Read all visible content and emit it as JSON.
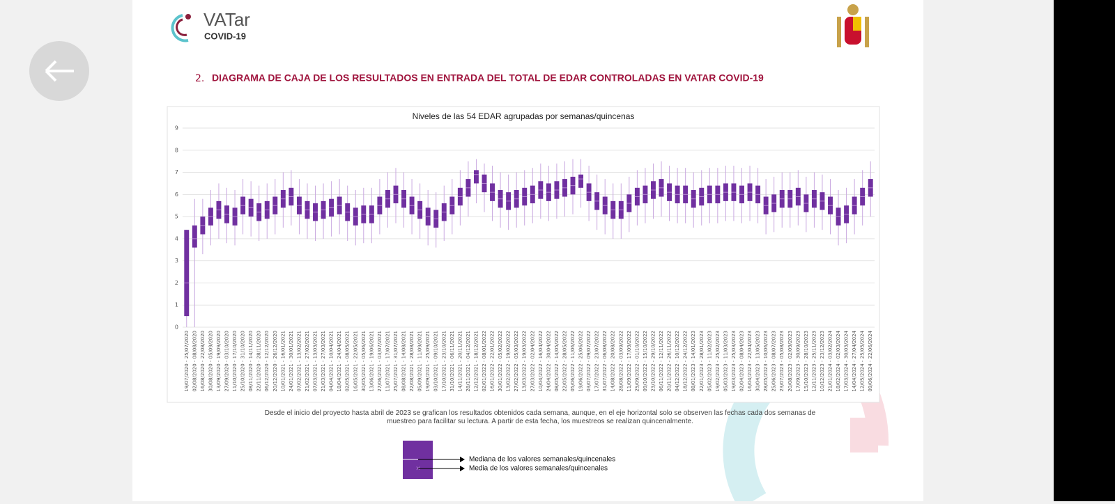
{
  "header": {
    "logo_text": "VATar",
    "logo_sub": "COVID-19"
  },
  "section": {
    "number": "2.",
    "title": "DIAGRAMA DE CAJA DE LOS RESULTADOS EN ENTRADA DEL TOTAL DE EDAR CONTROLADAS EN VATAR COVID-19"
  },
  "chart_data": {
    "type": "box",
    "title": "Niveles de las 54 EDAR agrupadas por semanas/quincenas",
    "color": "#7030a0",
    "grid": true,
    "ylim": [
      0,
      9
    ],
    "yticks": [
      0,
      1,
      2,
      3,
      4,
      5,
      6,
      7,
      8,
      9
    ],
    "categories": [
      "19/07/2020 - 25/07/2020",
      "02/08/2020 - 08/08/2020",
      "16/08/2020 - 22/08/2020",
      "30/08/2020 - 05/09/2020",
      "13/09/2020 - 19/09/2020",
      "27/09/2020 - 03/10/2020",
      "11/10/2020 - 17/10/2020",
      "25/10/2020 - 31/10/2020",
      "08/11/2020 - 14/11/2020",
      "22/11/2020 - 28/11/2020",
      "06/12/2020 - 12/12/2020",
      "20/12/2020 - 26/12/2020",
      "10/01/2021 - 16/01/2021",
      "24/01/2021 - 30/01/2021",
      "07/02/2021 - 13/02/2021",
      "21/02/2021 - 27/02/2021",
      "07/03/2021 - 13/03/2021",
      "21/03/2021 - 27/03/2021",
      "04/04/2021 - 10/04/2021",
      "18/04/2021 - 24/04/2021",
      "02/05/2021 - 08/05/2021",
      "16/05/2021 - 22/05/2021",
      "30/05/2021 - 05/06/2021",
      "13/06/2021 - 19/06/2021",
      "27/06/2021 - 03/07/2021",
      "11/07/2021 - 17/07/2021",
      "25/07/2021 - 31/07/2021",
      "08/08/2021 - 14/08/2021",
      "22/08/2021 - 28/08/2021",
      "05/09/2021 - 11/09/2021",
      "19/09/2021 - 25/09/2021",
      "03/10/2021 - 09/10/2021",
      "17/10/2021 - 23/10/2021",
      "31/10/2021 - 06/11/2021",
      "14/11/2021 - 20/11/2021",
      "28/11/2021 - 04/12/2021",
      "12/12/2021 - 18/12/2021",
      "02/01/2022 - 08/01/2022",
      "16/01/2022 - 22/01/2022",
      "30/01/2022 - 05/02/2022",
      "13/02/2022 - 19/02/2022",
      "27/02/2022 - 05/03/2022",
      "13/03/2022 - 19/03/2022",
      "27/03/2022 - 02/04/2022",
      "10/04/2022 - 16/04/2022",
      "24/04/2022 - 30/04/2022",
      "08/05/2022 - 14/05/2022",
      "22/05/2022 - 28/05/2022",
      "05/06/2022 - 11/06/2022",
      "19/06/2022 - 25/06/2022",
      "03/07/2022 - 09/07/2022",
      "17/07/2022 - 23/07/2022",
      "31/07/2022 - 06/08/2022",
      "14/08/2022 - 20/08/2022",
      "28/08/2022 - 03/09/2022",
      "11/09/2022 - 17/09/2022",
      "25/09/2022 - 01/10/2022",
      "09/10/2022 - 15/10/2022",
      "23/10/2022 - 29/10/2022",
      "06/11/2022 - 12/11/2022",
      "20/11/2022 - 26/11/2022",
      "04/12/2022 - 10/12/2022",
      "18/12/2022 - 24/12/2022",
      "08/01/2023 - 14/01/2023",
      "22/01/2023 - 28/01/2023",
      "05/02/2023 - 11/02/2023",
      "19/02/2023 - 25/02/2023",
      "05/03/2023 - 11/03/2023",
      "19/03/2023 - 25/03/2023",
      "02/04/2023 - 08/04/2023",
      "16/04/2023 - 22/04/2023",
      "30/04/2023 - 13/05/2023",
      "28/05/2023 - 10/06/2023",
      "25/06/2023 - 08/07/2023",
      "23/07/2023 - 05/08/2023",
      "20/08/2023 - 02/09/2023",
      "17/09/2023 - 30/09/2023",
      "15/10/2023 - 28/10/2023",
      "12/11/2023 - 25/11/2023",
      "10/12/2023 - 23/12/2023",
      "21/01/2024 - 03/02/2024",
      "18/02/2024 - 02/03/2024",
      "17/03/2024 - 30/03/2024",
      "14/04/2024 - 27/04/2024",
      "12/05/2024 - 25/05/2024",
      "09/06/2024 - 22/06/2024"
    ],
    "whisker_low": [
      0,
      0,
      3.3,
      3.7,
      4.0,
      3.8,
      3.7,
      4.2,
      4.1,
      3.9,
      4.0,
      4.2,
      4.5,
      4.6,
      4.2,
      4.0,
      3.9,
      4.0,
      4.1,
      4.2,
      3.9,
      3.7,
      3.8,
      3.8,
      4.2,
      4.5,
      4.7,
      4.5,
      4.2,
      4.0,
      3.7,
      3.6,
      3.9,
      4.2,
      4.6,
      5.0,
      5.6,
      5.2,
      4.8,
      4.5,
      4.4,
      4.5,
      4.6,
      4.7,
      4.9,
      4.8,
      4.9,
      5.0,
      5.1,
      5.4,
      4.8,
      4.4,
      4.2,
      4.0,
      4.0,
      4.3,
      4.6,
      4.7,
      4.9,
      5.0,
      4.8,
      4.7,
      4.7,
      4.5,
      4.6,
      4.7,
      4.7,
      4.8,
      4.8,
      4.7,
      4.8,
      4.7,
      4.2,
      4.3,
      4.5,
      4.5,
      4.6,
      4.3,
      4.5,
      4.4,
      4.2,
      3.7,
      3.8,
      4.2,
      4.6,
      5.0
    ],
    "q1": [
      0.5,
      3.6,
      4.2,
      4.6,
      4.9,
      4.7,
      4.6,
      5.1,
      5.0,
      4.8,
      4.9,
      5.1,
      5.4,
      5.5,
      5.1,
      4.9,
      4.8,
      4.9,
      5.0,
      5.1,
      4.8,
      4.6,
      4.7,
      4.7,
      5.1,
      5.4,
      5.6,
      5.4,
      5.1,
      4.9,
      4.6,
      4.5,
      4.8,
      5.1,
      5.5,
      5.9,
      6.5,
      6.1,
      5.7,
      5.4,
      5.3,
      5.4,
      5.5,
      5.6,
      5.8,
      5.7,
      5.8,
      5.9,
      6.0,
      6.3,
      5.7,
      5.3,
      5.1,
      4.9,
      4.9,
      5.2,
      5.5,
      5.6,
      5.8,
      5.9,
      5.7,
      5.6,
      5.6,
      5.4,
      5.5,
      5.6,
      5.6,
      5.7,
      5.7,
      5.6,
      5.7,
      5.6,
      5.1,
      5.2,
      5.4,
      5.4,
      5.5,
      5.2,
      5.4,
      5.3,
      5.1,
      4.6,
      4.7,
      5.1,
      5.5,
      5.9
    ],
    "median": [
      2.0,
      4.0,
      4.6,
      5.0,
      5.3,
      5.1,
      5.0,
      5.5,
      5.4,
      5.2,
      5.3,
      5.5,
      5.8,
      5.9,
      5.5,
      5.3,
      5.2,
      5.3,
      5.4,
      5.5,
      5.2,
      5.0,
      5.1,
      5.1,
      5.5,
      5.8,
      6.0,
      5.8,
      5.5,
      5.3,
      5.0,
      4.9,
      5.2,
      5.5,
      5.9,
      6.3,
      6.9,
      6.5,
      6.1,
      5.8,
      5.7,
      5.8,
      5.9,
      6.0,
      6.2,
      6.1,
      6.2,
      6.3,
      6.4,
      6.7,
      6.1,
      5.7,
      5.5,
      5.3,
      5.3,
      5.6,
      5.9,
      6.0,
      6.2,
      6.3,
      6.1,
      6.0,
      6.0,
      5.8,
      5.9,
      6.0,
      6.0,
      6.1,
      6.1,
      6.0,
      6.1,
      6.0,
      5.5,
      5.6,
      5.8,
      5.8,
      5.9,
      5.6,
      5.8,
      5.7,
      5.5,
      5.0,
      5.1,
      5.5,
      5.9,
      6.3
    ],
    "q3": [
      4.4,
      4.6,
      5.0,
      5.4,
      5.7,
      5.5,
      5.4,
      5.9,
      5.8,
      5.6,
      5.7,
      5.9,
      6.2,
      6.3,
      5.9,
      5.7,
      5.6,
      5.7,
      5.8,
      5.9,
      5.6,
      5.4,
      5.5,
      5.5,
      5.9,
      6.2,
      6.4,
      6.2,
      5.9,
      5.7,
      5.4,
      5.3,
      5.6,
      5.9,
      6.3,
      6.7,
      7.1,
      6.9,
      6.5,
      6.2,
      6.1,
      6.2,
      6.3,
      6.4,
      6.6,
      6.5,
      6.6,
      6.7,
      6.8,
      6.9,
      6.5,
      6.1,
      5.9,
      5.7,
      5.7,
      6.0,
      6.3,
      6.4,
      6.6,
      6.7,
      6.5,
      6.4,
      6.4,
      6.2,
      6.3,
      6.4,
      6.4,
      6.5,
      6.5,
      6.4,
      6.5,
      6.4,
      5.9,
      6.0,
      6.2,
      6.2,
      6.3,
      6.0,
      6.2,
      6.1,
      5.9,
      5.4,
      5.5,
      5.9,
      6.3,
      6.7
    ],
    "whisker_high": [
      4.4,
      5.8,
      5.8,
      6.2,
      6.5,
      6.3,
      6.2,
      6.7,
      6.6,
      6.4,
      6.5,
      6.7,
      7.0,
      7.1,
      6.7,
      6.5,
      6.4,
      6.5,
      6.6,
      6.7,
      6.4,
      6.2,
      6.3,
      6.3,
      6.7,
      7.0,
      7.2,
      7.0,
      6.7,
      6.5,
      6.2,
      6.1,
      6.4,
      6.7,
      7.1,
      7.5,
      7.6,
      7.4,
      7.3,
      7.0,
      6.9,
      7.0,
      7.1,
      7.2,
      7.4,
      7.3,
      7.4,
      7.5,
      7.6,
      7.6,
      7.3,
      6.9,
      6.7,
      6.5,
      6.5,
      6.8,
      7.1,
      7.2,
      7.4,
      7.5,
      7.3,
      7.2,
      7.2,
      7.0,
      7.1,
      7.2,
      7.2,
      7.3,
      7.3,
      7.2,
      7.3,
      7.2,
      6.7,
      6.8,
      7.0,
      7.0,
      7.1,
      6.8,
      7.0,
      6.9,
      6.7,
      6.2,
      6.3,
      6.7,
      7.1,
      7.5
    ]
  },
  "caption": "Desde el inicio del proyecto hasta abril de 2023 se grafican los resultados obtenidos cada semana, aunque, en el eje horizontal solo se observen las fechas cada dos semanas de muestreo para facilitar su lectura. A partir de esta fecha, los muestreos se realizan quincenalmente.",
  "legend": {
    "median_label": "Mediana de los valores semanales/quincenales",
    "mean_label": "Media de los valores semanales/quincenales"
  }
}
